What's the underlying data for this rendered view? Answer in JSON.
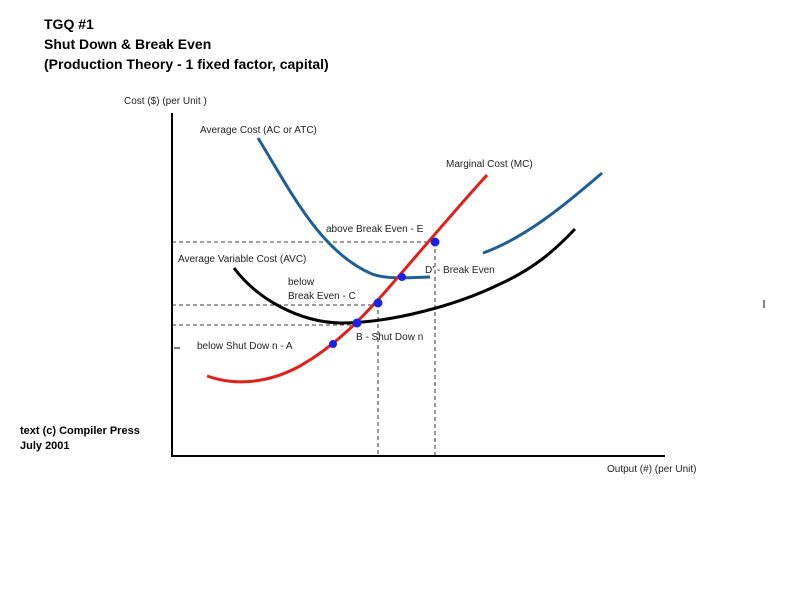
{
  "title": {
    "line1": "TGQ #1",
    "line2": "Shut Down & Break Even",
    "line3": "(Production Theory - 1 fixed factor, capital)"
  },
  "credit": {
    "line1": "text (c) Compiler Press",
    "line2": "July 2001"
  },
  "axes": {
    "y_label": "Cost ($) (per Unit )",
    "x_label": "Output (#) (per Unit)"
  },
  "curves": {
    "atc": {
      "label": "Average Cost (AC or ATC)",
      "color": "#1f5f96"
    },
    "mc": {
      "label": "Marginal Cost (MC)",
      "color": "#e0201b"
    },
    "avc": {
      "label": "Average Variable Cost (AVC)",
      "color": "#000000"
    }
  },
  "points": {
    "color": "#1a22e6",
    "a": "below  Shut Dow n -      A",
    "b": "B  -  Shut Dow n",
    "c_line1": "below",
    "c_line2": "Break Even   -   C",
    "d": "D'  - Break Even",
    "e": "above Break Even  -  E"
  }
}
